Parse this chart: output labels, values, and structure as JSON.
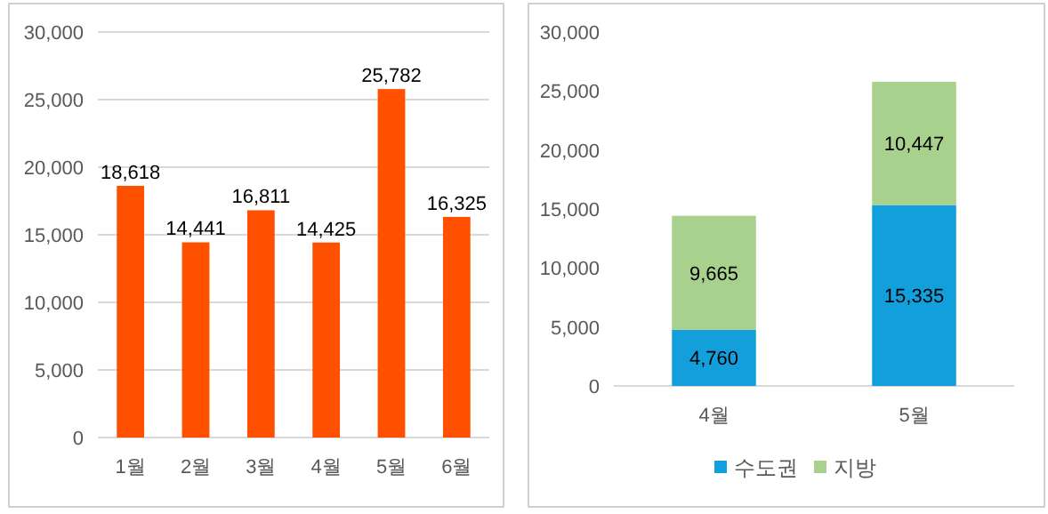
{
  "chart_data": [
    {
      "type": "bar",
      "categories": [
        "1월",
        "2월",
        "3월",
        "4월",
        "5월",
        "6월"
      ],
      "series": [
        {
          "color": "#ff5000",
          "values": [
            18618,
            14441,
            16811,
            14425,
            25782,
            16325
          ],
          "value_labels": [
            "18,618",
            "14,441",
            "16,811",
            "14,425",
            "25,782",
            "16,325"
          ]
        }
      ],
      "ylim": [
        0,
        30000
      ],
      "yticks": [
        {
          "value": 0,
          "label": "0"
        },
        {
          "value": 5000,
          "label": "5,000"
        },
        {
          "value": 10000,
          "label": "10,000"
        },
        {
          "value": 15000,
          "label": "15,000"
        },
        {
          "value": 20000,
          "label": "20,000"
        },
        {
          "value": 25000,
          "label": "25,000"
        },
        {
          "value": 30000,
          "label": "30,000"
        }
      ],
      "grid": "y",
      "legend": false
    },
    {
      "type": "bar",
      "stacked": true,
      "categories": [
        "4월",
        "5월"
      ],
      "series": [
        {
          "name": "수도권",
          "color": "#129fdb",
          "values": [
            4760,
            15335
          ],
          "value_labels": [
            "4,760",
            "15,335"
          ]
        },
        {
          "name": "지방",
          "color": "#a8d18d",
          "values": [
            9665,
            10447
          ],
          "value_labels": [
            "9,665",
            "10,447"
          ]
        }
      ],
      "ylim": [
        0,
        30000
      ],
      "yticks": [
        {
          "value": 0,
          "label": "0"
        },
        {
          "value": 5000,
          "label": "5,000"
        },
        {
          "value": 10000,
          "label": "10,000"
        },
        {
          "value": 15000,
          "label": "15,000"
        },
        {
          "value": 20000,
          "label": "20,000"
        },
        {
          "value": 25000,
          "label": "25,000"
        },
        {
          "value": 30000,
          "label": "30,000"
        }
      ],
      "grid": false,
      "legend": "bottom"
    }
  ]
}
